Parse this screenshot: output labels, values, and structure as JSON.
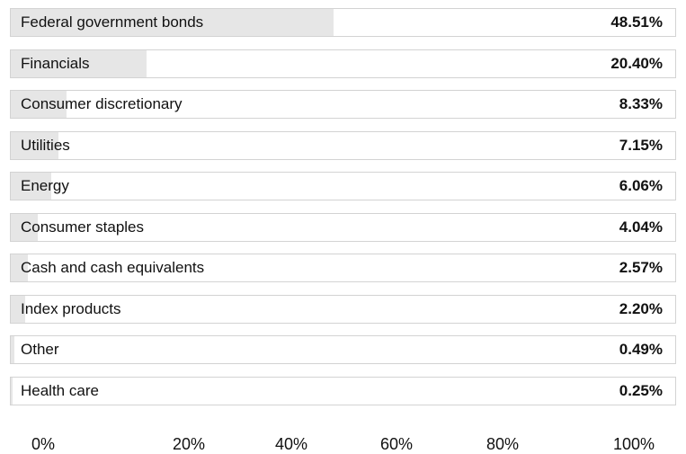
{
  "chart_data": {
    "type": "bar",
    "orientation": "horizontal",
    "categories": [
      "Federal government bonds",
      "Financials",
      "Consumer discretionary",
      "Utilities",
      "Energy",
      "Consumer staples",
      "Cash and cash equivalents",
      "Index products",
      "Other",
      "Health care"
    ],
    "values": [
      48.51,
      20.4,
      8.33,
      7.15,
      6.06,
      4.04,
      2.57,
      2.2,
      0.49,
      0.25
    ],
    "value_labels": [
      "48.51%",
      "20.40%",
      "8.33%",
      "7.15%",
      "6.06%",
      "4.04%",
      "2.57%",
      "2.20%",
      "0.49%",
      "0.25%"
    ],
    "xlim": [
      0,
      100
    ],
    "x_ticks": [
      "0%",
      "20%",
      "40%",
      "60%",
      "80%",
      "100%"
    ],
    "colors": {
      "bar": "#e6e6e6",
      "border": "#d3d3d3",
      "text": "#111111"
    }
  }
}
